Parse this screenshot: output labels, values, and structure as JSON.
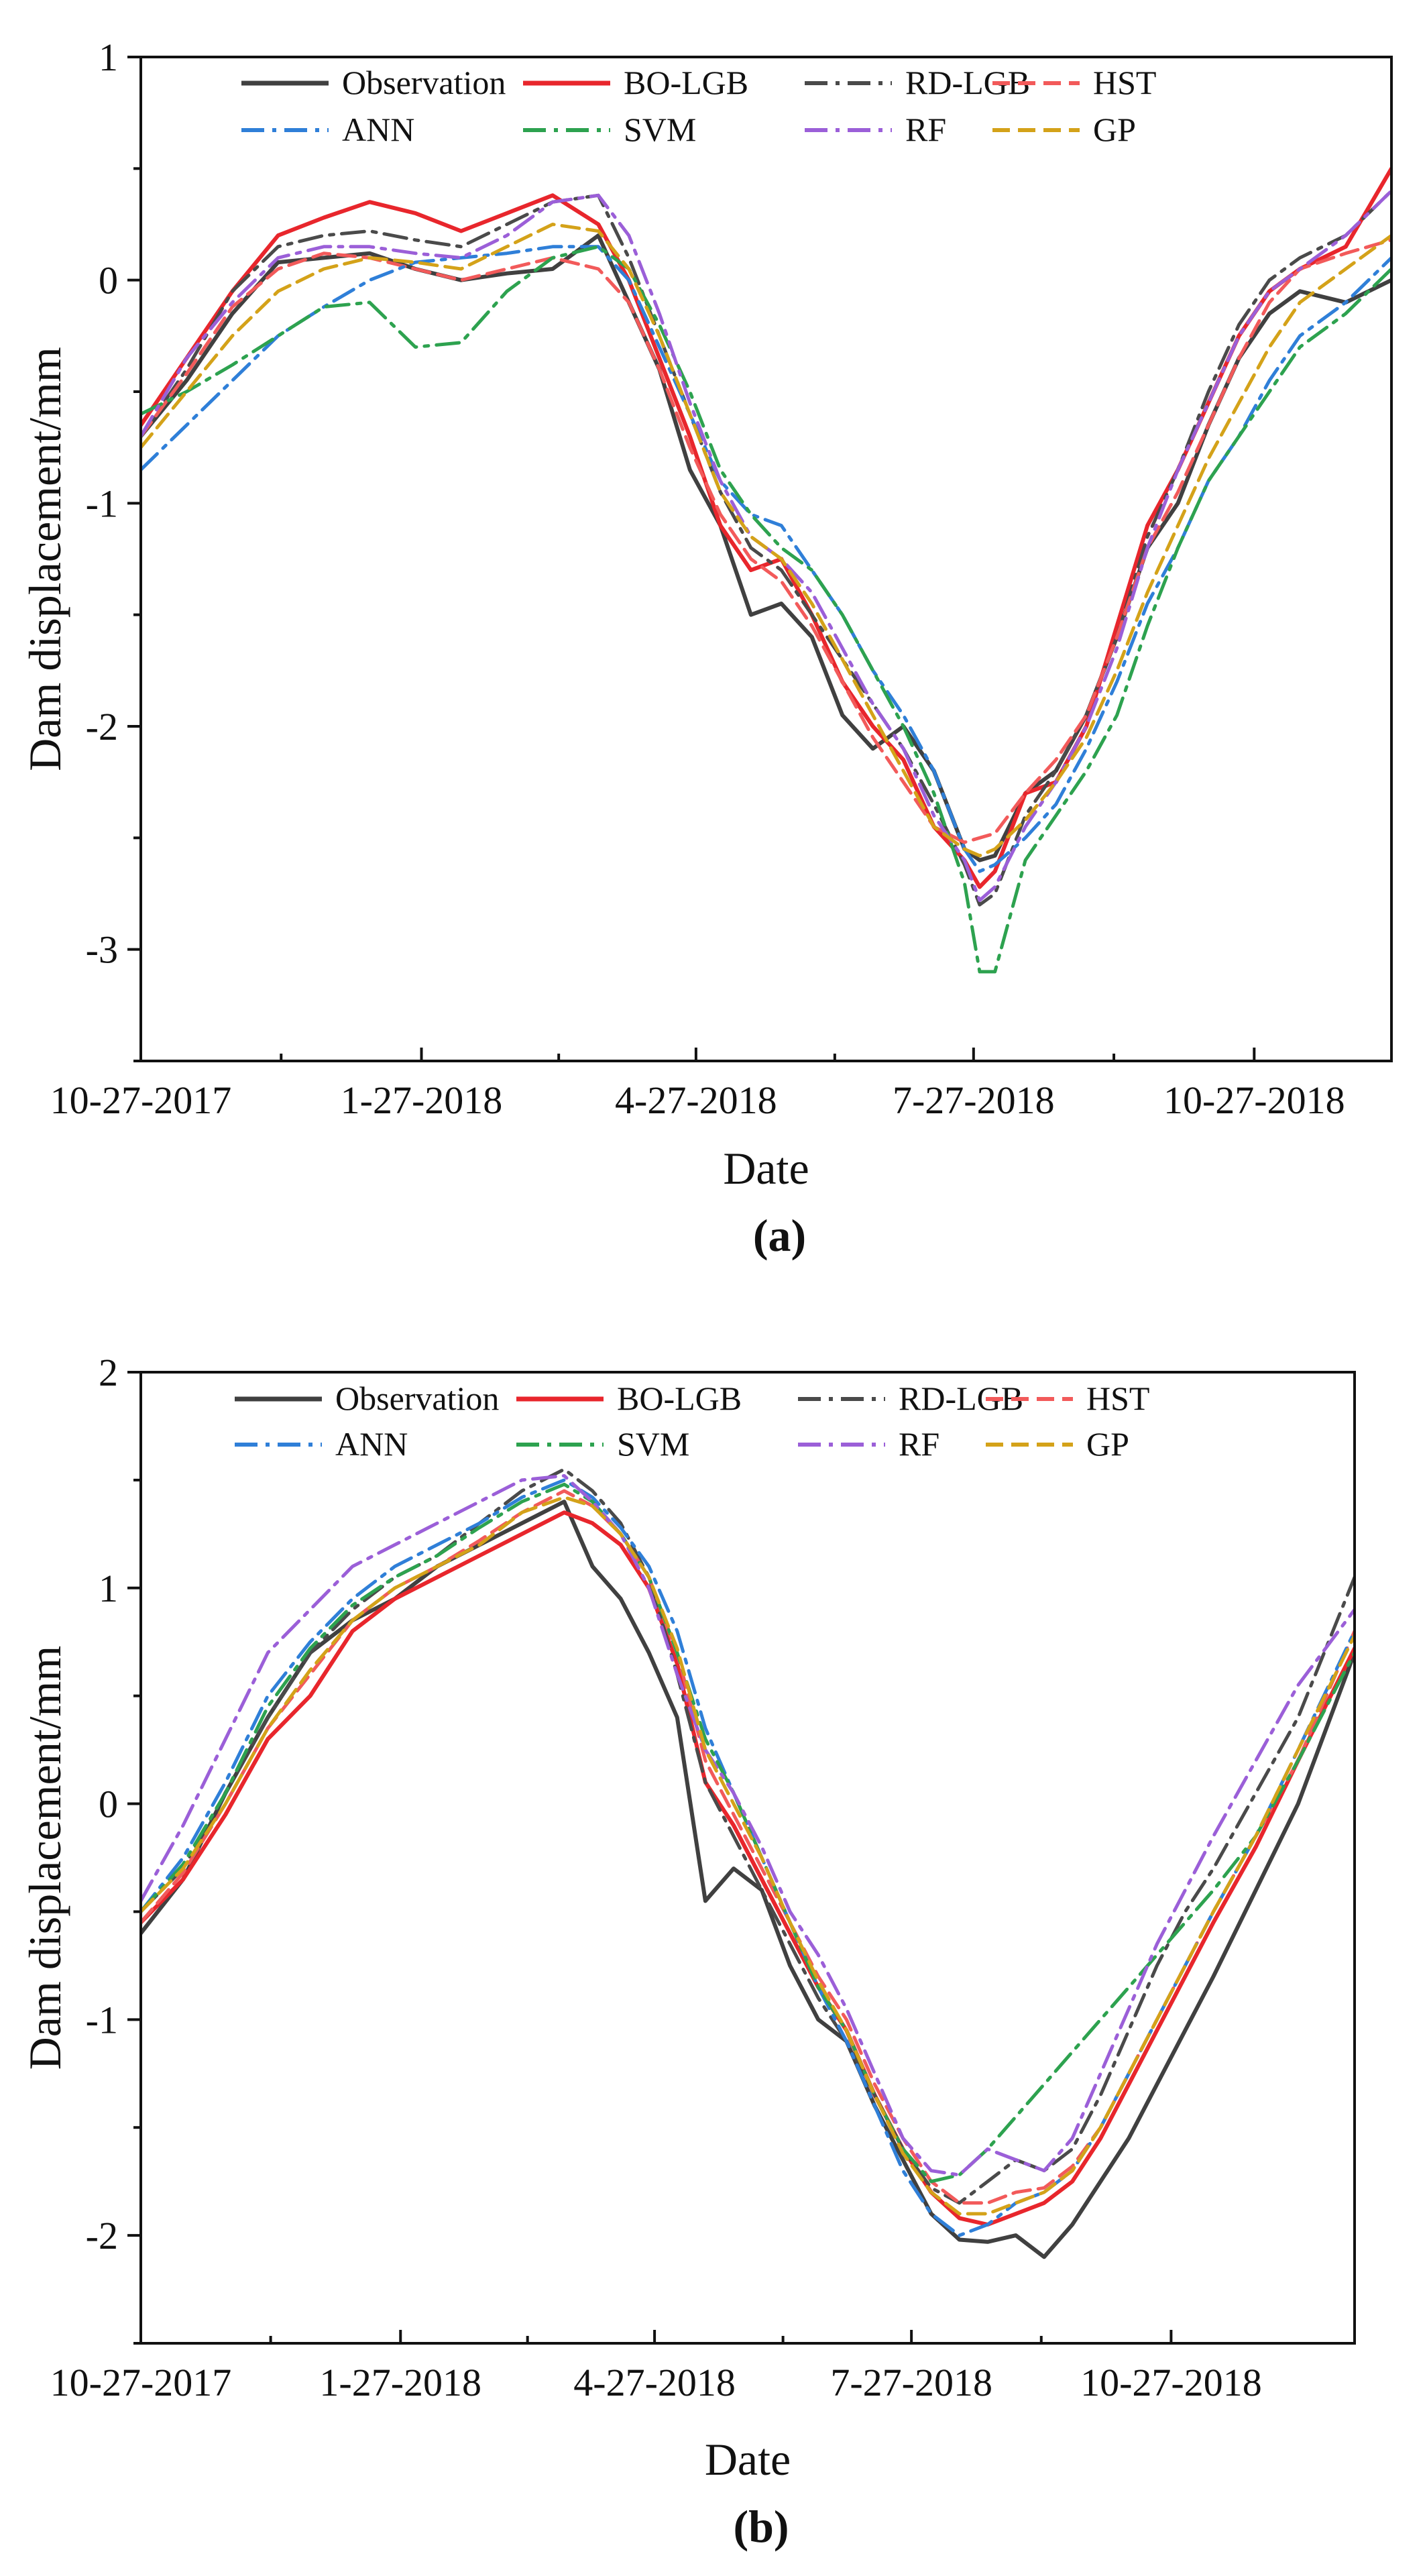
{
  "chart_data": [
    {
      "panel": "(a)",
      "type": "line",
      "xlabel": "Date",
      "ylabel": "Dam displacement/mm",
      "ylim": [
        -3.5,
        1
      ],
      "yticks": [
        1,
        0,
        -1,
        -2,
        -3
      ],
      "ytick_labels": [
        "1",
        "0",
        "-1",
        "-2",
        "-3"
      ],
      "xlim": [
        0,
        410
      ],
      "xticks": [
        0,
        92,
        182,
        273,
        365
      ],
      "xtick_labels": [
        "10-27-2017",
        "1-27-2018",
        "4-27-2018",
        "7-27-2018",
        "10-27-2018"
      ],
      "legend": [
        "Observation",
        "BO-LGB",
        "RD-LGB",
        "HST",
        "ANN",
        "SVM",
        "RF",
        "GP"
      ],
      "x": [
        0,
        15,
        30,
        45,
        60,
        75,
        90,
        105,
        120,
        135,
        150,
        160,
        170,
        180,
        190,
        200,
        210,
        220,
        230,
        240,
        250,
        260,
        270,
        275,
        280,
        290,
        300,
        310,
        320,
        330,
        340,
        350,
        360,
        370,
        380,
        395,
        410
      ],
      "series": [
        {
          "name": "Observation",
          "color": "#404040",
          "style": "solid",
          "width": 6,
          "values": [
            -0.7,
            -0.45,
            -0.15,
            0.08,
            0.1,
            0.12,
            0.05,
            0.0,
            0.03,
            0.05,
            0.2,
            -0.1,
            -0.4,
            -0.85,
            -1.1,
            -1.5,
            -1.45,
            -1.6,
            -1.95,
            -2.1,
            -2.0,
            -2.2,
            -2.55,
            -2.6,
            -2.58,
            -2.3,
            -2.2,
            -1.95,
            -1.6,
            -1.2,
            -1.0,
            -0.65,
            -0.35,
            -0.15,
            -0.05,
            -0.1,
            0.0
          ]
        },
        {
          "name": "BO-LGB",
          "color": "#e8262c",
          "style": "solid",
          "width": 6,
          "values": [
            -0.65,
            -0.35,
            -0.05,
            0.2,
            0.28,
            0.35,
            0.3,
            0.22,
            0.3,
            0.38,
            0.25,
            0.0,
            -0.35,
            -0.7,
            -1.1,
            -1.3,
            -1.25,
            -1.5,
            -1.8,
            -2.0,
            -2.15,
            -2.45,
            -2.6,
            -2.72,
            -2.65,
            -2.3,
            -2.25,
            -2.0,
            -1.55,
            -1.1,
            -0.85,
            -0.55,
            -0.25,
            -0.05,
            0.05,
            0.15,
            0.5
          ]
        },
        {
          "name": "RD-LGB",
          "color": "#4a4a4a",
          "style": "dashdot",
          "width": 5,
          "values": [
            -0.7,
            -0.4,
            -0.05,
            0.15,
            0.2,
            0.22,
            0.18,
            0.15,
            0.25,
            0.35,
            0.38,
            0.1,
            -0.25,
            -0.6,
            -0.95,
            -1.2,
            -1.3,
            -1.5,
            -1.7,
            -1.9,
            -2.1,
            -2.35,
            -2.62,
            -2.8,
            -2.75,
            -2.4,
            -2.2,
            -1.95,
            -1.6,
            -1.15,
            -0.85,
            -0.5,
            -0.2,
            0.0,
            0.1,
            0.2,
            0.4
          ]
        },
        {
          "name": "HST",
          "color": "#f25a5a",
          "style": "dash",
          "width": 5,
          "values": [
            -0.7,
            -0.42,
            -0.12,
            0.05,
            0.12,
            0.1,
            0.05,
            0.0,
            0.05,
            0.1,
            0.05,
            -0.1,
            -0.4,
            -0.75,
            -1.05,
            -1.25,
            -1.35,
            -1.55,
            -1.8,
            -2.05,
            -2.25,
            -2.45,
            -2.52,
            -2.5,
            -2.48,
            -2.3,
            -2.15,
            -1.95,
            -1.6,
            -1.2,
            -0.95,
            -0.65,
            -0.35,
            -0.1,
            0.05,
            0.12,
            0.18
          ]
        },
        {
          "name": "ANN",
          "color": "#2f7fd8",
          "style": "dashdot",
          "width": 5,
          "values": [
            -0.85,
            -0.65,
            -0.45,
            -0.25,
            -0.12,
            0.0,
            0.08,
            0.1,
            0.12,
            0.15,
            0.15,
            0.0,
            -0.3,
            -0.6,
            -0.9,
            -1.05,
            -1.1,
            -1.3,
            -1.5,
            -1.75,
            -1.95,
            -2.2,
            -2.55,
            -2.65,
            -2.62,
            -2.5,
            -2.35,
            -2.1,
            -1.8,
            -1.45,
            -1.2,
            -0.9,
            -0.7,
            -0.45,
            -0.25,
            -0.1,
            0.1
          ]
        },
        {
          "name": "SVM",
          "color": "#2da24f",
          "style": "dashdot",
          "width": 5,
          "values": [
            -0.6,
            -0.5,
            -0.38,
            -0.25,
            -0.12,
            -0.1,
            -0.3,
            -0.28,
            -0.05,
            0.1,
            0.15,
            0.05,
            -0.2,
            -0.5,
            -0.85,
            -1.05,
            -1.2,
            -1.3,
            -1.5,
            -1.75,
            -2.0,
            -2.3,
            -2.7,
            -3.1,
            -3.1,
            -2.6,
            -2.4,
            -2.2,
            -1.95,
            -1.55,
            -1.2,
            -0.9,
            -0.7,
            -0.5,
            -0.3,
            -0.15,
            0.05
          ]
        },
        {
          "name": "RF",
          "color": "#9b5fd8",
          "style": "dashdot",
          "width": 5,
          "values": [
            -0.7,
            -0.35,
            -0.1,
            0.1,
            0.15,
            0.15,
            0.12,
            0.1,
            0.2,
            0.35,
            0.38,
            0.2,
            -0.15,
            -0.55,
            -0.9,
            -1.15,
            -1.25,
            -1.4,
            -1.65,
            -1.9,
            -2.1,
            -2.4,
            -2.6,
            -2.78,
            -2.72,
            -2.45,
            -2.25,
            -2.0,
            -1.65,
            -1.2,
            -0.85,
            -0.55,
            -0.25,
            -0.05,
            0.05,
            0.2,
            0.4
          ]
        },
        {
          "name": "GP",
          "color": "#d4a219",
          "style": "dash",
          "width": 5,
          "values": [
            -0.75,
            -0.5,
            -0.25,
            -0.05,
            0.05,
            0.1,
            0.08,
            0.05,
            0.15,
            0.25,
            0.22,
            0.05,
            -0.25,
            -0.6,
            -0.95,
            -1.15,
            -1.25,
            -1.45,
            -1.7,
            -1.95,
            -2.2,
            -2.45,
            -2.55,
            -2.58,
            -2.55,
            -2.42,
            -2.25,
            -2.05,
            -1.75,
            -1.4,
            -1.1,
            -0.8,
            -0.55,
            -0.3,
            -0.1,
            0.05,
            0.2
          ]
        }
      ]
    },
    {
      "panel": "(b)",
      "type": "line",
      "xlabel": "Date",
      "ylabel": "Dam displacement/mm",
      "ylim": [
        -2.5,
        2
      ],
      "yticks": [
        2,
        1,
        0,
        -1,
        -2
      ],
      "ytick_labels": [
        "2",
        "1",
        "0",
        "-1",
        "-2"
      ],
      "xlim": [
        0,
        430
      ],
      "xticks": [
        0,
        92,
        182,
        273,
        365
      ],
      "xtick_labels": [
        "10-27-2017",
        "1-27-2018",
        "4-27-2018",
        "7-27-2018",
        "10-27-2018"
      ],
      "legend": [
        "Observation",
        "BO-LGB",
        "RD-LGB",
        "HST",
        "ANN",
        "SVM",
        "RF",
        "GP"
      ],
      "x": [
        0,
        15,
        30,
        45,
        60,
        75,
        90,
        105,
        120,
        135,
        150,
        160,
        170,
        180,
        190,
        200,
        210,
        220,
        230,
        240,
        250,
        260,
        270,
        280,
        290,
        300,
        310,
        320,
        330,
        340,
        350,
        360,
        370,
        380,
        395,
        410,
        430
      ],
      "series": [
        {
          "name": "Observation",
          "color": "#404040",
          "style": "solid",
          "width": 6,
          "values": [
            -0.6,
            -0.35,
            0.05,
            0.4,
            0.7,
            0.85,
            0.95,
            1.1,
            1.2,
            1.3,
            1.4,
            1.1,
            0.95,
            0.7,
            0.4,
            -0.45,
            -0.3,
            -0.4,
            -0.75,
            -1.0,
            -1.1,
            -1.4,
            -1.65,
            -1.9,
            -2.02,
            -2.03,
            -2.0,
            -2.1,
            -1.95,
            -1.75,
            -1.55,
            -1.3,
            -1.05,
            -0.8,
            -0.4,
            0.0,
            0.7
          ]
        },
        {
          "name": "BO-LGB",
          "color": "#e8262c",
          "style": "solid",
          "width": 6,
          "values": [
            -0.55,
            -0.35,
            -0.05,
            0.3,
            0.5,
            0.8,
            0.95,
            1.05,
            1.15,
            1.25,
            1.35,
            1.3,
            1.2,
            1.0,
            0.65,
            0.1,
            -0.1,
            -0.35,
            -0.6,
            -0.85,
            -1.05,
            -1.35,
            -1.6,
            -1.8,
            -1.92,
            -1.95,
            -1.9,
            -1.85,
            -1.75,
            -1.55,
            -1.3,
            -1.05,
            -0.8,
            -0.55,
            -0.2,
            0.2,
            0.72
          ]
        },
        {
          "name": "RD-LGB",
          "color": "#4a4a4a",
          "style": "dashdot",
          "width": 5,
          "values": [
            -0.5,
            -0.3,
            0.05,
            0.4,
            0.7,
            0.9,
            1.05,
            1.15,
            1.3,
            1.45,
            1.55,
            1.45,
            1.3,
            1.05,
            0.6,
            0.1,
            -0.15,
            -0.4,
            -0.65,
            -0.9,
            -1.1,
            -1.35,
            -1.6,
            -1.78,
            -1.85,
            -1.75,
            -1.65,
            -1.7,
            -1.6,
            -1.35,
            -1.05,
            -0.75,
            -0.5,
            -0.3,
            0.05,
            0.4,
            1.05
          ]
        },
        {
          "name": "HST",
          "color": "#f25a5a",
          "style": "dash",
          "width": 5,
          "values": [
            -0.55,
            -0.32,
            0.0,
            0.35,
            0.6,
            0.85,
            1.0,
            1.1,
            1.22,
            1.35,
            1.45,
            1.38,
            1.25,
            1.05,
            0.7,
            0.2,
            -0.05,
            -0.3,
            -0.55,
            -0.8,
            -1.0,
            -1.3,
            -1.55,
            -1.75,
            -1.85,
            -1.85,
            -1.8,
            -1.78,
            -1.68,
            -1.5,
            -1.25,
            -1.0,
            -0.75,
            -0.5,
            -0.15,
            0.2,
            0.8
          ]
        },
        {
          "name": "ANN",
          "color": "#2f7fd8",
          "style": "dashdot",
          "width": 5,
          "values": [
            -0.5,
            -0.25,
            0.1,
            0.5,
            0.75,
            0.95,
            1.1,
            1.2,
            1.3,
            1.42,
            1.5,
            1.42,
            1.28,
            1.1,
            0.8,
            0.35,
            0.05,
            -0.25,
            -0.55,
            -0.85,
            -1.1,
            -1.4,
            -1.7,
            -1.9,
            -2.0,
            -1.95,
            -1.85,
            -1.8,
            -1.7,
            -1.5,
            -1.25,
            -1.0,
            -0.75,
            -0.5,
            -0.15,
            0.25,
            0.8
          ]
        },
        {
          "name": "SVM",
          "color": "#2da24f",
          "style": "dashdot",
          "width": 5,
          "values": [
            -0.5,
            -0.28,
            0.05,
            0.45,
            0.72,
            0.92,
            1.05,
            1.15,
            1.28,
            1.4,
            1.48,
            1.4,
            1.25,
            1.05,
            0.7,
            0.3,
            0.05,
            -0.25,
            -0.55,
            -0.85,
            -1.05,
            -1.35,
            -1.6,
            -1.75,
            -1.72,
            -1.6,
            -1.45,
            -1.3,
            -1.15,
            -1.0,
            -0.85,
            -0.7,
            -0.55,
            -0.4,
            -0.15,
            0.2,
            0.7
          ]
        },
        {
          "name": "RF",
          "color": "#9b5fd8",
          "style": "dashdot",
          "width": 5,
          "values": [
            -0.45,
            -0.1,
            0.3,
            0.7,
            0.9,
            1.1,
            1.2,
            1.3,
            1.4,
            1.5,
            1.52,
            1.4,
            1.25,
            1.0,
            0.6,
            0.25,
            0.05,
            -0.2,
            -0.5,
            -0.7,
            -0.95,
            -1.25,
            -1.55,
            -1.7,
            -1.72,
            -1.6,
            -1.65,
            -1.7,
            -1.55,
            -1.25,
            -0.95,
            -0.65,
            -0.4,
            -0.15,
            0.2,
            0.55,
            0.9
          ]
        },
        {
          "name": "GP",
          "color": "#d4a219",
          "style": "dash",
          "width": 5,
          "values": [
            -0.5,
            -0.3,
            0.0,
            0.35,
            0.62,
            0.85,
            1.0,
            1.1,
            1.2,
            1.35,
            1.42,
            1.38,
            1.25,
            1.05,
            0.72,
            0.25,
            0.0,
            -0.25,
            -0.55,
            -0.82,
            -1.05,
            -1.35,
            -1.62,
            -1.8,
            -1.9,
            -1.9,
            -1.85,
            -1.8,
            -1.7,
            -1.5,
            -1.25,
            -1.0,
            -0.75,
            -0.5,
            -0.15,
            0.25,
            0.78
          ]
        }
      ]
    }
  ]
}
